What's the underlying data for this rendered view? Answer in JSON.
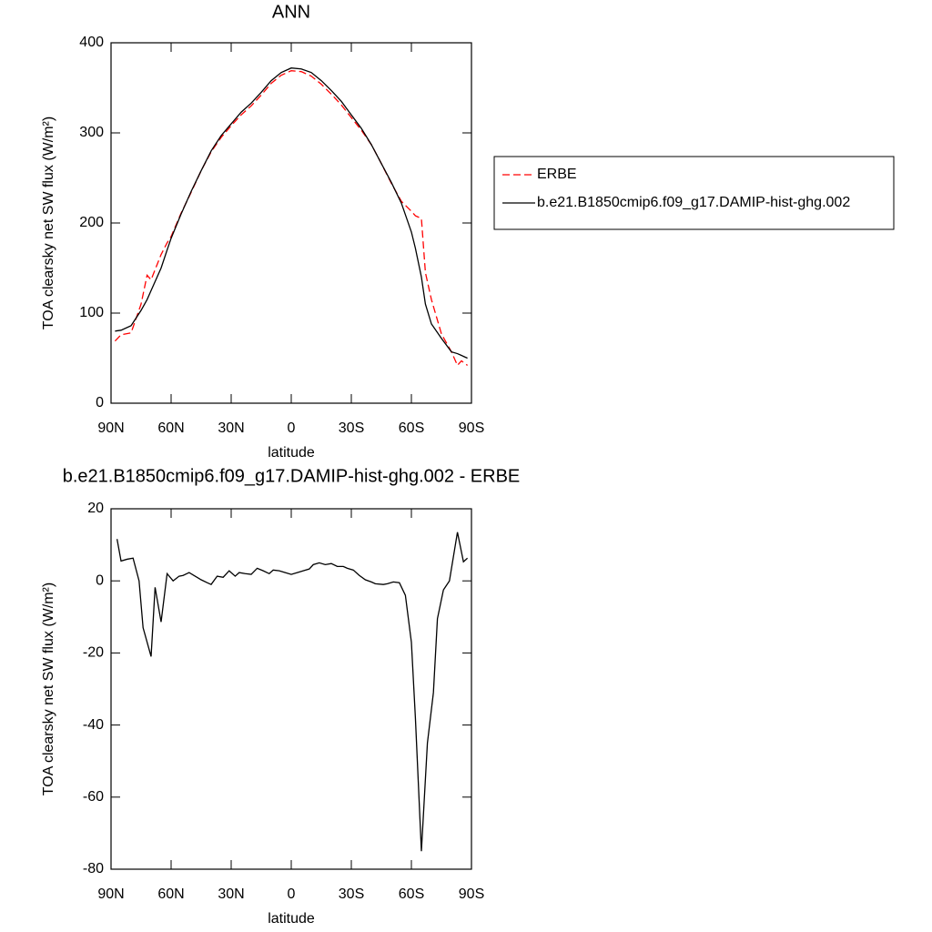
{
  "chart_data": [
    {
      "type": "line",
      "title": "ANN",
      "x_label": "latitude",
      "y_label": "TOA clearsky net SW flux (W/m²)",
      "x": [
        88,
        85,
        80,
        75,
        72,
        70,
        65,
        62,
        60,
        55,
        50,
        45,
        40,
        35,
        30,
        25,
        20,
        15,
        10,
        5,
        0,
        -5,
        -10,
        -15,
        -20,
        -25,
        -30,
        -35,
        -40,
        -45,
        -50,
        -55,
        -60,
        -62,
        -65,
        -67,
        -70,
        -75,
        -80,
        -83,
        -85,
        -88
      ],
      "series": [
        {
          "name": "ERBE",
          "color": "#ff0000",
          "style": "dashed",
          "values": [
            69,
            76,
            78,
            110,
            142,
            137,
            165,
            178,
            185,
            211,
            234,
            258,
            279,
            295,
            308,
            320,
            330,
            342,
            355,
            364,
            369,
            368,
            363,
            354,
            343,
            331,
            317,
            303,
            287,
            266,
            244,
            224,
            213,
            208,
            205,
            145,
            115,
            77,
            57,
            42,
            47,
            42
          ]
        },
        {
          "name": "b.e21.B1850cmip6.f09_g17.DAMIP-hist-ghg.002",
          "color": "#000000",
          "style": "solid",
          "values": [
            80,
            81,
            86,
            103,
            115,
            125,
            150,
            170,
            183,
            210,
            235,
            258,
            280,
            297,
            310,
            323,
            333,
            345,
            358,
            367,
            372,
            371,
            367,
            358,
            347,
            335,
            320,
            305,
            287,
            266,
            245,
            222,
            190,
            172,
            140,
            110,
            88,
            72,
            57,
            55,
            53,
            50
          ]
        }
      ],
      "xlim": [
        90,
        -90
      ],
      "xticks": [
        {
          "value": 90,
          "label": "90N"
        },
        {
          "value": 60,
          "label": "60N"
        },
        {
          "value": 30,
          "label": "30N"
        },
        0,
        {
          "value": -30,
          "label": "30S"
        },
        {
          "value": -60,
          "label": "60S"
        },
        {
          "value": -90,
          "label": "90S"
        }
      ],
      "ylim": [
        0,
        400
      ],
      "yticks": [
        0,
        100,
        200,
        300,
        400
      ],
      "legend": "right"
    },
    {
      "type": "line",
      "title": "b.e21.B1850cmip6.f09_g17.DAMIP-hist-ghg.002 - ERBE",
      "x_label": "latitude",
      "y_label": "TOA clearsky net SW flux (W/m²)",
      "x": [
        87,
        85,
        82,
        79,
        76,
        74,
        70,
        68,
        65,
        62,
        59,
        56,
        54,
        51,
        48,
        45,
        42,
        40,
        37,
        34,
        31,
        28,
        26,
        23,
        20,
        17,
        14,
        11,
        9,
        6,
        3,
        0,
        -3,
        -6,
        -9,
        -11,
        -14,
        -17,
        -20,
        -23,
        -26,
        -28,
        -31,
        -34,
        -37,
        -40,
        -42,
        -46,
        -48,
        -51,
        -54,
        -57,
        -60,
        -62,
        -65,
        -68,
        -71,
        -73,
        -76,
        -79,
        -83,
        -86,
        -88
      ],
      "series": [
        {
          "name": "b.e21.B1850cmip6.f09_g17.DAMIP-hist-ghg.002 - ERBE",
          "color": "#000000",
          "style": "solid",
          "values": [
            11.6,
            5.5,
            6,
            6.3,
            0,
            -13,
            -21,
            -1.8,
            -11.4,
            2,
            0,
            1.3,
            1.5,
            2.3,
            1.3,
            0.3,
            -0.5,
            -1,
            1.3,
            1,
            2.8,
            1.3,
            2.3,
            2,
            1.8,
            3.5,
            2.8,
            2,
            3,
            2.8,
            2.3,
            1.8,
            2.3,
            2.8,
            3.3,
            4.5,
            5,
            4.5,
            4.8,
            4,
            4,
            3.5,
            3,
            1.5,
            0.3,
            -0.3,
            -0.8,
            -1,
            -0.8,
            -0.3,
            -0.5,
            -4,
            -17,
            -38,
            -75,
            -45,
            -31,
            -10.5,
            -2.5,
            0,
            13.5,
            5.3,
            6.3
          ]
        }
      ],
      "xlim": [
        90,
        -90
      ],
      "xticks": [
        {
          "value": 90,
          "label": "90N"
        },
        {
          "value": 60,
          "label": "60N"
        },
        {
          "value": 30,
          "label": "30N"
        },
        0,
        {
          "value": -30,
          "label": "30S"
        },
        {
          "value": -60,
          "label": "60S"
        },
        {
          "value": -90,
          "label": "90S"
        }
      ],
      "ylim": [
        -80,
        20
      ],
      "yticks": [
        -80,
        -60,
        -40,
        -20,
        0,
        20
      ]
    }
  ]
}
